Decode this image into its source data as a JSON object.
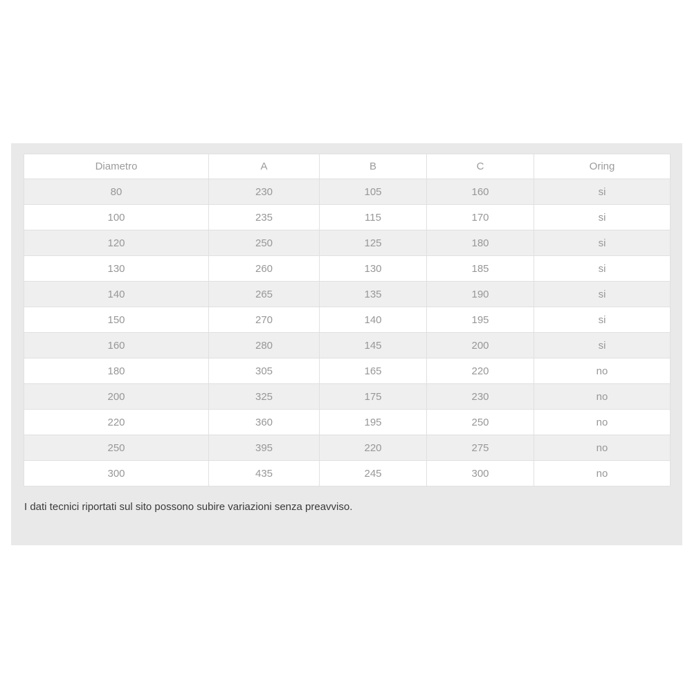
{
  "table": {
    "columns": [
      "Diametro",
      "A",
      "B",
      "C",
      "Oring"
    ],
    "rows": [
      [
        "80",
        "230",
        "105",
        "160",
        "si"
      ],
      [
        "100",
        "235",
        "115",
        "170",
        "si"
      ],
      [
        "120",
        "250",
        "125",
        "180",
        "si"
      ],
      [
        "130",
        "260",
        "130",
        "185",
        "si"
      ],
      [
        "140",
        "265",
        "135",
        "190",
        "si"
      ],
      [
        "150",
        "270",
        "140",
        "195",
        "si"
      ],
      [
        "160",
        "280",
        "145",
        "200",
        "si"
      ],
      [
        "180",
        "305",
        "165",
        "220",
        "no"
      ],
      [
        "200",
        "325",
        "175",
        "230",
        "no"
      ],
      [
        "220",
        "360",
        "195",
        "250",
        "no"
      ],
      [
        "250",
        "395",
        "220",
        "275",
        "no"
      ],
      [
        "300",
        "435",
        "245",
        "300",
        "no"
      ]
    ]
  },
  "footer": {
    "note": "I dati tecnici riportati sul sito possono subire variazioni senza preavviso."
  },
  "colors": {
    "panel_background": "#e9e9e9",
    "row_stripe": "#efefef",
    "table_border": "#e0e0e0",
    "cell_text": "#979797",
    "disclaimer_text": "#3a3a3a"
  }
}
